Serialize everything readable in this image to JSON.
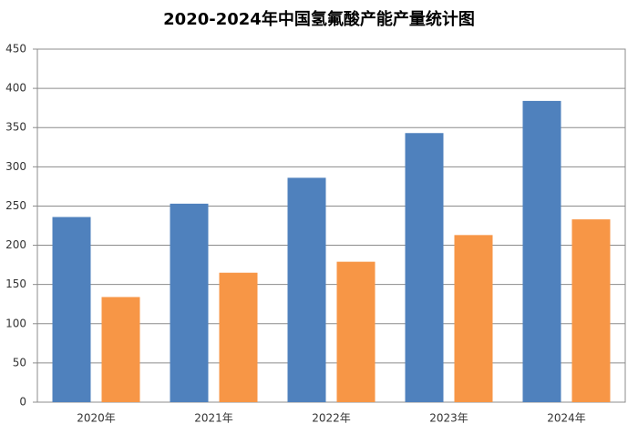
{
  "chart_data": {
    "type": "bar",
    "title": "2020-2024年中国氢氟酸产能产量统计图",
    "categories": [
      "2020年",
      "2021年",
      "2022年",
      "2023年",
      "2024年"
    ],
    "series": [
      {
        "color": "#4f81bd",
        "values": [
          236,
          253,
          286,
          343,
          384
        ]
      },
      {
        "color": "#f79646",
        "values": [
          134,
          165,
          179,
          213,
          233
        ]
      }
    ],
    "ylim": [
      0,
      450
    ],
    "yticks": [
      0,
      50,
      100,
      150,
      200,
      250,
      300,
      350,
      400,
      450
    ],
    "grid": true
  }
}
